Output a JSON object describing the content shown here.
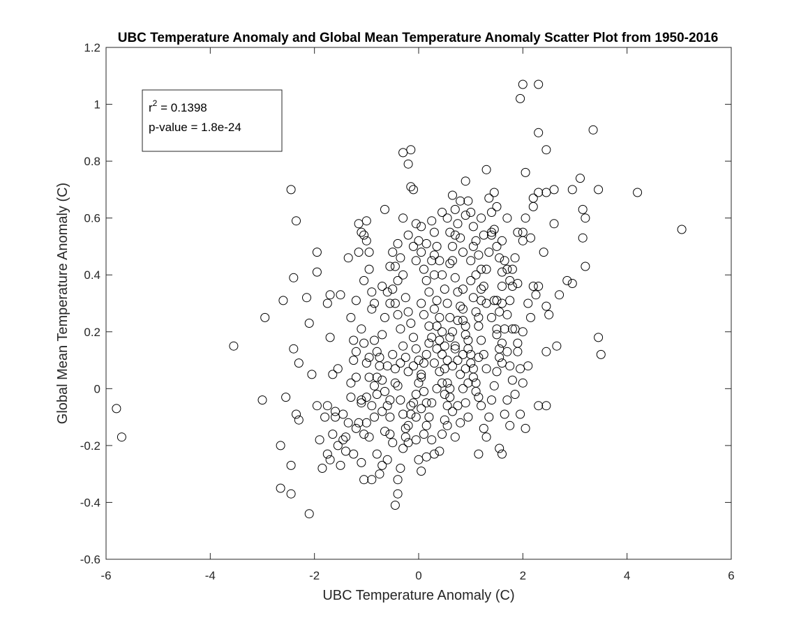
{
  "chart_data": {
    "type": "scatter",
    "title": "UBC Temperature Anomaly and Global Mean Temperature Anomaly Scatter Plot from 1950-2016",
    "xlabel": "UBC Temperature Anomaly (C)",
    "ylabel": "Global Mean Temperature Anomaly (C)",
    "xlim": [
      -6,
      6
    ],
    "ylim": [
      -0.6,
      1.2
    ],
    "xticks": [
      "-6",
      "-4",
      "-2",
      "0",
      "2",
      "4",
      "6"
    ],
    "yticks": [
      "-0.6",
      "-0.4",
      "-0.2",
      "0",
      "0.2",
      "0.4",
      "0.6",
      "0.8",
      "1",
      "1.2"
    ],
    "grid": false,
    "marker": "open-circle",
    "marker_color": "#000000",
    "annotation": {
      "r2_label": "r",
      "r2_sup": "2",
      "r2_value": " = 0.1398",
      "pvalue": "p-value = 1.8e-24"
    },
    "points": [
      [
        -5.8,
        -0.07
      ],
      [
        -5.7,
        -0.17
      ],
      [
        -3.55,
        0.15
      ],
      [
        -2.95,
        0.25
      ],
      [
        -3.0,
        -0.04
      ],
      [
        -2.6,
        0.31
      ],
      [
        -2.55,
        -0.03
      ],
      [
        -2.45,
        0.7
      ],
      [
        -2.35,
        0.59
      ],
      [
        -2.4,
        0.39
      ],
      [
        -2.4,
        0.14
      ],
      [
        -2.3,
        0.09
      ],
      [
        -2.35,
        -0.09
      ],
      [
        -2.3,
        -0.11
      ],
      [
        -2.65,
        -0.2
      ],
      [
        -2.45,
        -0.27
      ],
      [
        -2.65,
        -0.35
      ],
      [
        -2.45,
        -0.37
      ],
      [
        -2.1,
        -0.44
      ],
      [
        -2.15,
        0.32
      ],
      [
        -2.1,
        0.23
      ],
      [
        -2.05,
        0.05
      ],
      [
        -1.95,
        0.48
      ],
      [
        -1.95,
        0.41
      ],
      [
        -1.95,
        -0.06
      ],
      [
        -1.9,
        -0.18
      ],
      [
        -1.85,
        -0.28
      ],
      [
        -1.75,
        -0.23
      ],
      [
        -1.7,
        -0.25
      ],
      [
        -1.75,
        0.3
      ],
      [
        -1.7,
        0.33
      ],
      [
        -1.7,
        0.18
      ],
      [
        -1.65,
        0.05
      ],
      [
        -1.6,
        -0.08
      ],
      [
        -1.55,
        -0.2
      ],
      [
        -1.5,
        0.33
      ],
      [
        -1.4,
        -0.17
      ],
      [
        -1.35,
        0.46
      ],
      [
        -1.3,
        0.02
      ],
      [
        -1.25,
        -0.23
      ],
      [
        -1.2,
        0.31
      ],
      [
        -1.2,
        0.13
      ],
      [
        -1.15,
        0.58
      ],
      [
        -1.15,
        0.48
      ],
      [
        -1.1,
        0.55
      ],
      [
        -1.05,
        0.54
      ],
      [
        -1.05,
        0.38
      ],
      [
        -1.0,
        0.59
      ],
      [
        -1.0,
        0.52
      ],
      [
        -0.95,
        0.48
      ],
      [
        -0.95,
        0.42
      ],
      [
        -0.9,
        0.34
      ],
      [
        -0.9,
        0.28
      ],
      [
        -1.1,
        0.21
      ],
      [
        -1.05,
        0.16
      ],
      [
        -1.0,
        0.09
      ],
      [
        -0.95,
        0.04
      ],
      [
        -1.0,
        -0.03
      ],
      [
        -1.1,
        -0.05
      ],
      [
        -1.15,
        -0.12
      ],
      [
        -1.05,
        -0.16
      ],
      [
        -1.1,
        -0.26
      ],
      [
        -1.05,
        -0.32
      ],
      [
        -0.9,
        -0.32
      ],
      [
        -0.8,
        -0.23
      ],
      [
        -0.75,
        -0.3
      ],
      [
        -0.7,
        -0.27
      ],
      [
        -0.6,
        -0.25
      ],
      [
        -0.55,
        -0.16
      ],
      [
        -0.45,
        -0.41
      ],
      [
        -0.4,
        -0.37
      ],
      [
        -0.4,
        -0.32
      ],
      [
        -0.35,
        -0.28
      ],
      [
        -0.3,
        -0.21
      ],
      [
        -0.25,
        -0.17
      ],
      [
        -0.2,
        -0.13
      ],
      [
        -0.15,
        -0.09
      ],
      [
        -0.1,
        -0.05
      ],
      [
        -0.05,
        -0.02
      ],
      [
        0.0,
        0.02
      ],
      [
        0.05,
        0.05
      ],
      [
        0.1,
        0.09
      ],
      [
        0.15,
        0.12
      ],
      [
        0.2,
        0.16
      ],
      [
        -0.85,
        0.17
      ],
      [
        -0.8,
        0.13
      ],
      [
        -0.75,
        0.08
      ],
      [
        -0.7,
        0.03
      ],
      [
        -0.65,
        -0.01
      ],
      [
        -0.6,
        -0.06
      ],
      [
        -0.55,
        -0.1
      ],
      [
        -0.5,
        0.35
      ],
      [
        -0.45,
        0.3
      ],
      [
        -0.4,
        0.26
      ],
      [
        -0.35,
        0.21
      ],
      [
        -0.3,
        0.15
      ],
      [
        -0.25,
        0.11
      ],
      [
        -0.2,
        0.06
      ],
      [
        -0.65,
        0.63
      ],
      [
        -0.3,
        0.83
      ],
      [
        -0.2,
        0.79
      ],
      [
        -0.15,
        0.84
      ],
      [
        -0.15,
        0.71
      ],
      [
        -0.1,
        0.7
      ],
      [
        -0.05,
        0.58
      ],
      [
        0.0,
        0.52
      ],
      [
        0.05,
        0.48
      ],
      [
        -0.05,
        0.45
      ],
      [
        0.1,
        0.42
      ],
      [
        0.15,
        0.38
      ],
      [
        0.2,
        0.34
      ],
      [
        0.25,
        0.59
      ],
      [
        0.3,
        0.55
      ],
      [
        0.35,
        0.5
      ],
      [
        0.4,
        0.45
      ],
      [
        0.45,
        0.4
      ],
      [
        0.5,
        0.35
      ],
      [
        0.55,
        0.3
      ],
      [
        0.6,
        0.25
      ],
      [
        0.65,
        0.2
      ],
      [
        0.7,
        0.15
      ],
      [
        0.75,
        0.1
      ],
      [
        0.8,
        0.05
      ],
      [
        0.85,
        0.0
      ],
      [
        0.9,
        -0.05
      ],
      [
        0.95,
        -0.1
      ],
      [
        0.3,
        0.28
      ],
      [
        0.35,
        0.22
      ],
      [
        0.4,
        0.17
      ],
      [
        0.45,
        0.12
      ],
      [
        0.5,
        0.07
      ],
      [
        0.55,
        0.02
      ],
      [
        0.6,
        -0.03
      ],
      [
        0.65,
        -0.08
      ],
      [
        0.7,
        -0.17
      ],
      [
        0.3,
        -0.23
      ],
      [
        0.25,
        -0.18
      ],
      [
        0.15,
        -0.13
      ],
      [
        0.05,
        -0.07
      ],
      [
        -0.05,
        -0.18
      ],
      [
        0.4,
        -0.22
      ],
      [
        0.45,
        -0.16
      ],
      [
        0.5,
        -0.11
      ],
      [
        0.55,
        -0.06
      ],
      [
        0.6,
        0.0
      ],
      [
        0.65,
        0.08
      ],
      [
        0.7,
        0.14
      ],
      [
        0.55,
        0.6
      ],
      [
        0.6,
        0.55
      ],
      [
        0.65,
        0.68
      ],
      [
        0.7,
        0.63
      ],
      [
        0.75,
        0.58
      ],
      [
        0.8,
        0.53
      ],
      [
        0.85,
        0.48
      ],
      [
        0.9,
        0.73
      ],
      [
        0.95,
        0.66
      ],
      [
        1.0,
        0.62
      ],
      [
        1.05,
        0.57
      ],
      [
        1.1,
        0.52
      ],
      [
        1.15,
        0.47
      ],
      [
        1.2,
        0.42
      ],
      [
        1.3,
        0.77
      ],
      [
        1.35,
        0.67
      ],
      [
        1.4,
        0.62
      ],
      [
        1.45,
        0.56
      ],
      [
        1.5,
        0.5
      ],
      [
        1.55,
        0.46
      ],
      [
        1.6,
        0.41
      ],
      [
        1.0,
        0.38
      ],
      [
        1.05,
        0.32
      ],
      [
        1.1,
        0.27
      ],
      [
        1.15,
        0.22
      ],
      [
        1.2,
        0.17
      ],
      [
        1.25,
        0.12
      ],
      [
        1.3,
        0.07
      ],
      [
        0.85,
        0.28
      ],
      [
        0.9,
        0.22
      ],
      [
        0.95,
        0.17
      ],
      [
        1.0,
        0.12
      ],
      [
        1.05,
        0.07
      ],
      [
        1.1,
        0.02
      ],
      [
        1.15,
        -0.03
      ],
      [
        1.2,
        -0.06
      ],
      [
        1.25,
        -0.14
      ],
      [
        1.3,
        -0.17
      ],
      [
        1.35,
        -0.1
      ],
      [
        1.15,
        -0.23
      ],
      [
        1.4,
        -0.04
      ],
      [
        1.45,
        0.01
      ],
      [
        1.5,
        0.06
      ],
      [
        1.55,
        0.11
      ],
      [
        1.6,
        0.16
      ],
      [
        1.65,
        0.21
      ],
      [
        1.7,
        0.26
      ],
      [
        1.75,
        0.31
      ],
      [
        1.8,
        0.36
      ],
      [
        1.5,
        0.31
      ],
      [
        1.55,
        0.27
      ],
      [
        1.6,
        0.36
      ],
      [
        1.65,
        0.45
      ],
      [
        1.7,
        0.42
      ],
      [
        1.75,
        0.38
      ],
      [
        1.8,
        0.21
      ],
      [
        1.55,
        -0.21
      ],
      [
        1.6,
        -0.23
      ],
      [
        1.65,
        -0.09
      ],
      [
        1.7,
        -0.04
      ],
      [
        1.75,
        -0.13
      ],
      [
        1.85,
        0.21
      ],
      [
        1.9,
        0.16
      ],
      [
        1.95,
        0.07
      ],
      [
        2.0,
        0.02
      ],
      [
        2.05,
        -0.14
      ],
      [
        1.95,
        -0.09
      ],
      [
        2.1,
        0.08
      ],
      [
        2.15,
        0.25
      ],
      [
        2.2,
        0.36
      ],
      [
        1.95,
        1.02
      ],
      [
        2.0,
        1.07
      ],
      [
        2.3,
        1.07
      ],
      [
        2.3,
        0.9
      ],
      [
        2.45,
        0.84
      ],
      [
        2.05,
        0.76
      ],
      [
        2.2,
        0.67
      ],
      [
        2.3,
        0.69
      ],
      [
        2.45,
        0.69
      ],
      [
        2.6,
        0.7
      ],
      [
        2.6,
        0.58
      ],
      [
        2.4,
        0.48
      ],
      [
        2.3,
        0.36
      ],
      [
        2.45,
        0.29
      ],
      [
        2.5,
        0.26
      ],
      [
        2.65,
        0.15
      ],
      [
        2.45,
        0.13
      ],
      [
        2.3,
        -0.06
      ],
      [
        2.45,
        -0.06
      ],
      [
        2.7,
        0.33
      ],
      [
        2.85,
        0.38
      ],
      [
        2.95,
        0.7
      ],
      [
        3.1,
        0.74
      ],
      [
        3.15,
        0.63
      ],
      [
        3.2,
        0.6
      ],
      [
        3.15,
        0.53
      ],
      [
        3.2,
        0.43
      ],
      [
        2.95,
        0.37
      ],
      [
        3.35,
        0.91
      ],
      [
        3.45,
        0.7
      ],
      [
        3.45,
        0.18
      ],
      [
        3.5,
        0.12
      ],
      [
        4.2,
        0.69
      ],
      [
        5.05,
        0.56
      ],
      [
        2.0,
        0.55
      ],
      [
        1.9,
        0.55
      ],
      [
        2.0,
        0.52
      ],
      [
        2.15,
        0.53
      ],
      [
        2.2,
        0.64
      ],
      [
        2.05,
        0.6
      ],
      [
        1.85,
        0.46
      ],
      [
        2.25,
        0.33
      ],
      [
        -1.3,
        0.25
      ],
      [
        -1.25,
        0.1
      ],
      [
        -1.3,
        -0.03
      ],
      [
        -1.35,
        -0.12
      ],
      [
        -1.4,
        -0.22
      ],
      [
        -1.45,
        -0.09
      ],
      [
        -1.55,
        0.07
      ],
      [
        -1.6,
        -0.1
      ],
      [
        -1.65,
        -0.16
      ],
      [
        -1.5,
        -0.27
      ],
      [
        -1.45,
        -0.18
      ],
      [
        -1.2,
        -0.14
      ],
      [
        -0.9,
        -0.06
      ],
      [
        -0.85,
        0.01
      ],
      [
        -0.8,
        0.04
      ],
      [
        -0.75,
        0.11
      ],
      [
        -0.7,
        0.19
      ],
      [
        -0.65,
        0.25
      ],
      [
        -0.6,
        0.34
      ],
      [
        -0.55,
        0.43
      ],
      [
        -0.5,
        0.48
      ],
      [
        -0.45,
        0.43
      ],
      [
        -0.4,
        0.51
      ],
      [
        -0.35,
        0.46
      ],
      [
        -0.3,
        0.4
      ],
      [
        -0.25,
        0.32
      ],
      [
        -0.2,
        0.27
      ],
      [
        -0.15,
        0.23
      ],
      [
        -0.1,
        0.18
      ],
      [
        -0.05,
        0.14
      ],
      [
        0.0,
        0.1
      ],
      [
        0.05,
        0.04
      ],
      [
        0.1,
        -0.01
      ],
      [
        0.15,
        -0.05
      ],
      [
        0.2,
        -0.1
      ],
      [
        0.25,
        0.45
      ],
      [
        0.3,
        0.4
      ],
      [
        0.35,
        0.31
      ],
      [
        0.4,
        0.25
      ],
      [
        0.45,
        0.2
      ],
      [
        0.5,
        0.15
      ],
      [
        0.55,
        0.1
      ],
      [
        0.6,
        0.44
      ],
      [
        0.65,
        0.5
      ],
      [
        0.7,
        0.39
      ],
      [
        0.75,
        0.34
      ],
      [
        0.8,
        0.29
      ],
      [
        0.85,
        0.24
      ],
      [
        0.9,
        0.19
      ],
      [
        0.95,
        0.14
      ],
      [
        1.0,
        0.09
      ],
      [
        1.05,
        0.04
      ],
      [
        1.1,
        -0.01
      ],
      [
        1.15,
        0.25
      ],
      [
        1.2,
        0.31
      ],
      [
        1.25,
        0.36
      ],
      [
        1.3,
        0.42
      ],
      [
        1.35,
        0.48
      ],
      [
        1.4,
        0.54
      ],
      [
        1.45,
        0.31
      ],
      [
        1.5,
        0.19
      ],
      [
        1.55,
        0.14
      ],
      [
        1.6,
        0.09
      ],
      [
        -0.5,
        0.12
      ],
      [
        -0.45,
        0.07
      ],
      [
        -0.4,
        0.01
      ],
      [
        -0.35,
        -0.04
      ],
      [
        -0.3,
        -0.09
      ],
      [
        -0.25,
        -0.14
      ],
      [
        -0.2,
        -0.19
      ],
      [
        0.0,
        -0.25
      ],
      [
        0.05,
        -0.29
      ],
      [
        0.15,
        -0.24
      ],
      [
        0.1,
        -0.16
      ],
      [
        -0.15,
        -0.06
      ],
      [
        -0.5,
        -0.19
      ],
      [
        -0.65,
        -0.15
      ],
      [
        -0.7,
        -0.08
      ],
      [
        -0.95,
        -0.17
      ],
      [
        -1.0,
        -0.12
      ],
      [
        -0.85,
        -0.1
      ],
      [
        -0.55,
        -0.04
      ],
      [
        -0.45,
        0.02
      ],
      [
        -0.6,
        0.08
      ],
      [
        0.9,
        0.61
      ],
      [
        0.8,
        0.66
      ],
      [
        0.7,
        0.54
      ],
      [
        0.65,
        0.45
      ],
      [
        1.05,
        0.5
      ],
      [
        1.2,
        0.6
      ],
      [
        1.25,
        0.54
      ],
      [
        1.4,
        0.55
      ],
      [
        1.45,
        0.69
      ],
      [
        1.5,
        0.64
      ],
      [
        1.6,
        0.52
      ],
      [
        1.7,
        0.6
      ],
      [
        1.8,
        0.42
      ],
      [
        1.9,
        0.37
      ],
      [
        0.05,
        0.3
      ],
      [
        0.1,
        0.26
      ],
      [
        0.2,
        0.22
      ],
      [
        0.25,
        0.18
      ],
      [
        0.35,
        0.14
      ],
      [
        0.4,
        0.06
      ],
      [
        0.45,
        0.02
      ],
      [
        0.5,
        -0.02
      ],
      [
        0.55,
        -0.13
      ],
      [
        0.75,
        -0.06
      ],
      [
        0.8,
        -0.12
      ],
      [
        0.85,
        0.12
      ],
      [
        0.9,
        0.07
      ],
      [
        0.95,
        0.02
      ],
      [
        -1.8,
        -0.1
      ],
      [
        -1.75,
        -0.06
      ],
      [
        -1.2,
        0.04
      ],
      [
        -0.85,
        0.3
      ],
      [
        -0.7,
        0.36
      ],
      [
        -0.55,
        0.3
      ],
      [
        -0.4,
        0.38
      ],
      [
        -0.3,
        0.6
      ],
      [
        -0.2,
        0.54
      ],
      [
        -0.1,
        0.5
      ],
      [
        0.05,
        0.57
      ],
      [
        0.15,
        0.51
      ],
      [
        0.3,
        0.47
      ],
      [
        0.45,
        0.62
      ],
      [
        1.0,
        0.45
      ],
      [
        1.1,
        0.4
      ],
      [
        1.2,
        0.35
      ],
      [
        1.3,
        0.3
      ],
      [
        1.4,
        0.25
      ],
      [
        1.5,
        0.21
      ],
      [
        1.6,
        0.3
      ],
      [
        1.7,
        0.13
      ],
      [
        1.75,
        0.08
      ],
      [
        1.8,
        0.03
      ],
      [
        1.85,
        -0.02
      ],
      [
        1.9,
        0.13
      ],
      [
        2.0,
        0.2
      ],
      [
        2.1,
        0.3
      ],
      [
        -0.05,
        -0.1
      ],
      [
        0.25,
        -0.05
      ],
      [
        0.35,
        0.0
      ],
      [
        0.6,
        0.18
      ],
      [
        0.75,
        0.24
      ],
      [
        0.85,
        0.35
      ],
      [
        1.15,
        0.11
      ],
      [
        0.3,
        0.09
      ],
      [
        -0.1,
        0.08
      ],
      [
        -0.35,
        0.09
      ],
      [
        -0.8,
        -0.02
      ],
      [
        -0.95,
        0.11
      ],
      [
        -1.1,
        -0.04
      ],
      [
        -1.25,
        0.17
      ]
    ]
  }
}
